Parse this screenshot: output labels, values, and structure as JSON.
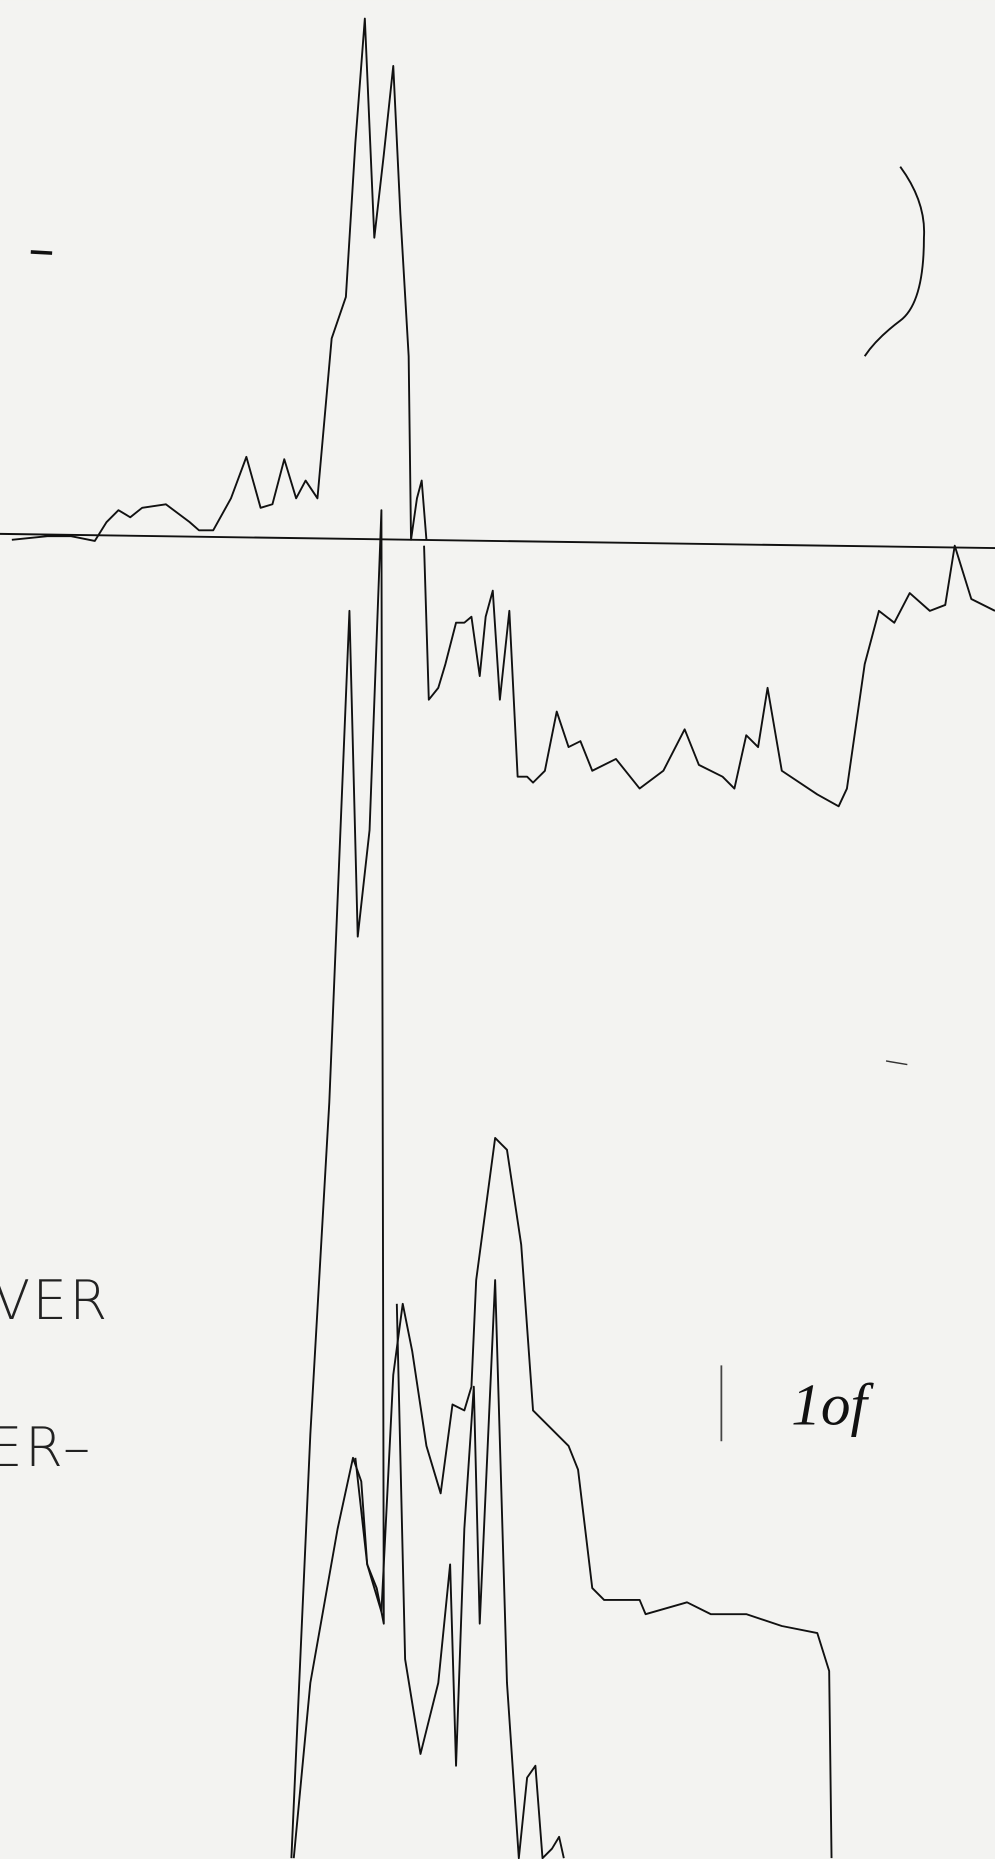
{
  "document": {
    "texts": {
      "line1": "VER",
      "line2": "ER–",
      "note": "1of"
    }
  }
}
